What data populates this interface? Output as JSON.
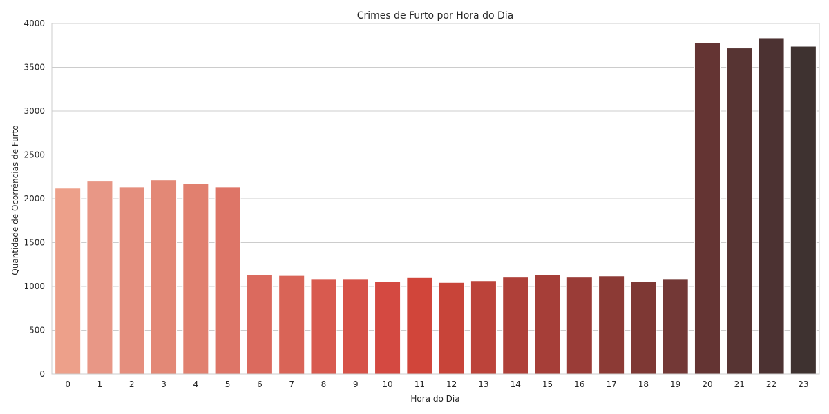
{
  "chart_data": {
    "type": "bar",
    "title": "Crimes de Furto por Hora do Dia",
    "xlabel": "Hora do Dia",
    "ylabel": "Quantidade de Ocorrências de Furto",
    "categories": [
      "0",
      "1",
      "2",
      "3",
      "4",
      "5",
      "6",
      "7",
      "8",
      "9",
      "10",
      "11",
      "12",
      "13",
      "14",
      "15",
      "16",
      "17",
      "18",
      "19",
      "20",
      "21",
      "22",
      "23"
    ],
    "values": [
      2120,
      2200,
      2135,
      2215,
      2175,
      2135,
      1135,
      1125,
      1080,
      1080,
      1055,
      1100,
      1045,
      1065,
      1105,
      1130,
      1105,
      1120,
      1055,
      1080,
      3780,
      3720,
      3835,
      3740
    ],
    "ylim": [
      0,
      4000
    ],
    "yticks": [
      0,
      500,
      1000,
      1500,
      2000,
      2500,
      3000,
      3500,
      4000
    ],
    "grid": "horizontal",
    "colors": [
      "#eda08a",
      "#e89786",
      "#e58e7d",
      "#e38876",
      "#e1806f",
      "#de7567",
      "#db6a5e",
      "#d96457",
      "#d85a4f",
      "#d65248",
      "#d44941",
      "#d1453a",
      "#c84439",
      "#bc433a",
      "#af4039",
      "#a63e38",
      "#9a3c37",
      "#8c3a35",
      "#7e3834",
      "#733836",
      "#643433",
      "#573433",
      "#4c3232",
      "#3e3230"
    ]
  }
}
